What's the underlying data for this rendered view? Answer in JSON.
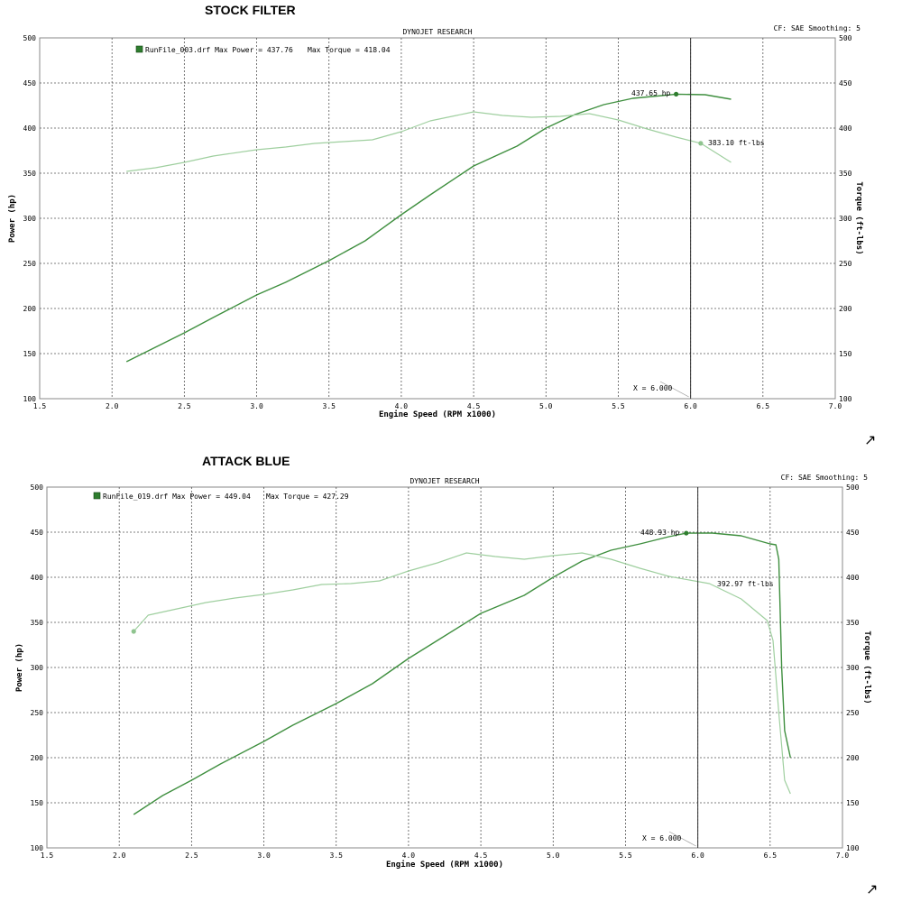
{
  "charts": [
    {
      "heading": "STOCK FILTER",
      "header_center": "DYNOJET RESEARCH",
      "header_right": "CF: SAE  Smoothing: 5",
      "legend": {
        "run_file": "RunFile_003.drf Max Power = 437.76",
        "max_torque": "Max Torque = 418.04",
        "color": "#2e7d2e"
      },
      "xlabel": "Engine Speed (RPM x1000)",
      "ylabel_left": "Power (hp)",
      "ylabel_right": "Torque (ft-lbs)",
      "cursor_label": "X = 6.000",
      "cursor_x": 6.0,
      "power_annotation": "437.65 hp",
      "torque_annotation": "383.10 ft-lbs"
    },
    {
      "heading": "ATTACK BLUE",
      "header_center": "DYNOJET RESEARCH",
      "header_right": "CF: SAE  Smoothing: 5",
      "legend": {
        "run_file": "RunFile_019.drf Max Power = 449.04",
        "max_torque": "Max Torque = 427.29",
        "color": "#2e7d2e"
      },
      "xlabel": "Engine Speed (RPM x1000)",
      "ylabel_left": "Power (hp)",
      "ylabel_right": "Torque (ft-lbs)",
      "cursor_label": "X = 6.000",
      "cursor_x": 6.0,
      "power_annotation": "448.93 hp",
      "torque_annotation": "392.97 ft-lbs"
    }
  ],
  "colors": {
    "power_line": "#3f8f3f",
    "torque_line": "#9fcf9f",
    "grid": "#555555",
    "frame": "#888888",
    "marker_power": "#2e7d2e",
    "marker_torque": "#8fc48f"
  },
  "icons": [
    "expand-arrow-icon",
    "expand-arrow-icon"
  ],
  "chart_data": [
    {
      "type": "line",
      "title": "STOCK FILTER",
      "xlabel": "Engine Speed (RPM x1000)",
      "ylabel": "Power (hp)",
      "ylabel_right": "Torque (ft-lbs)",
      "xlim": [
        1.5,
        7.0
      ],
      "ylim": [
        100,
        500
      ],
      "ylim_right": [
        100,
        500
      ],
      "x_ticks": [
        "1.5",
        "2.0",
        "2.5",
        "3.0",
        "3.5",
        "4.0",
        "4.5",
        "5.0",
        "5.5",
        "6.0",
        "6.5",
        "7.0"
      ],
      "y_ticks": [
        "100",
        "150",
        "200",
        "250",
        "300",
        "350",
        "400",
        "450",
        "500"
      ],
      "grid": true,
      "series": [
        {
          "name": "Power",
          "x": [
            2.1,
            2.3,
            2.5,
            2.7,
            3.0,
            3.2,
            3.5,
            3.75,
            4.0,
            4.2,
            4.5,
            4.8,
            5.0,
            5.2,
            5.4,
            5.6,
            5.8,
            5.9,
            6.1,
            6.28
          ],
          "y": [
            141,
            157,
            173,
            190,
            215,
            229,
            253,
            275,
            304,
            326,
            358,
            380,
            400,
            415,
            426,
            433,
            436,
            437.65,
            437,
            432
          ]
        },
        {
          "name": "Torque",
          "x": [
            2.1,
            2.3,
            2.5,
            2.7,
            3.0,
            3.2,
            3.4,
            3.6,
            3.8,
            4.0,
            4.2,
            4.5,
            4.7,
            4.9,
            5.1,
            5.3,
            5.5,
            5.7,
            5.9,
            6.07,
            6.28
          ],
          "y": [
            352,
            356,
            362,
            369,
            376,
            379,
            383,
            385,
            387,
            396,
            408,
            418,
            414,
            412,
            413,
            416,
            409,
            399,
            390,
            383.1,
            362
          ]
        }
      ],
      "annotations": [
        "437.65 hp",
        "383.10 ft-lbs",
        "X = 6.000"
      ]
    },
    {
      "type": "line",
      "title": "ATTACK BLUE",
      "xlabel": "Engine Speed (RPM x1000)",
      "ylabel": "Power (hp)",
      "ylabel_right": "Torque (ft-lbs)",
      "xlim": [
        1.5,
        7.0
      ],
      "ylim": [
        100,
        500
      ],
      "ylim_right": [
        100,
        500
      ],
      "x_ticks": [
        "1.5",
        "2.0",
        "2.5",
        "3.0",
        "3.5",
        "4.0",
        "4.5",
        "5.0",
        "5.5",
        "6.0",
        "6.5",
        "7.0"
      ],
      "y_ticks": [
        "100",
        "150",
        "200",
        "250",
        "300",
        "350",
        "400",
        "450",
        "500"
      ],
      "grid": true,
      "series": [
        {
          "name": "Power",
          "x": [
            2.1,
            2.3,
            2.5,
            2.7,
            3.0,
            3.2,
            3.5,
            3.75,
            4.0,
            4.2,
            4.5,
            4.8,
            5.0,
            5.2,
            5.4,
            5.6,
            5.8,
            5.92,
            6.1,
            6.3,
            6.5,
            6.54,
            6.56,
            6.58,
            6.6,
            6.62,
            6.64
          ],
          "y": [
            137,
            158,
            175,
            193,
            218,
            236,
            260,
            282,
            310,
            330,
            360,
            380,
            400,
            418,
            430,
            437,
            445,
            448.93,
            449,
            446,
            437,
            436,
            420,
            300,
            230,
            215,
            200
          ]
        },
        {
          "name": "Torque",
          "x": [
            2.1,
            2.2,
            2.4,
            2.6,
            2.8,
            3.0,
            3.2,
            3.4,
            3.6,
            3.8,
            4.0,
            4.2,
            4.4,
            4.6,
            4.8,
            5.0,
            5.2,
            5.4,
            5.6,
            5.8,
            6.08,
            6.3,
            6.48,
            6.52,
            6.56,
            6.6,
            6.64
          ],
          "y": [
            340,
            358,
            365,
            372,
            377,
            381,
            386,
            392,
            393,
            396,
            407,
            416,
            427,
            423,
            420,
            424,
            427,
            420,
            410,
            401,
            393,
            376,
            352,
            330,
            250,
            175,
            160
          ]
        }
      ],
      "annotations": [
        "448.93 hp",
        "392.97 ft-lbs",
        "X = 6.000"
      ]
    }
  ]
}
